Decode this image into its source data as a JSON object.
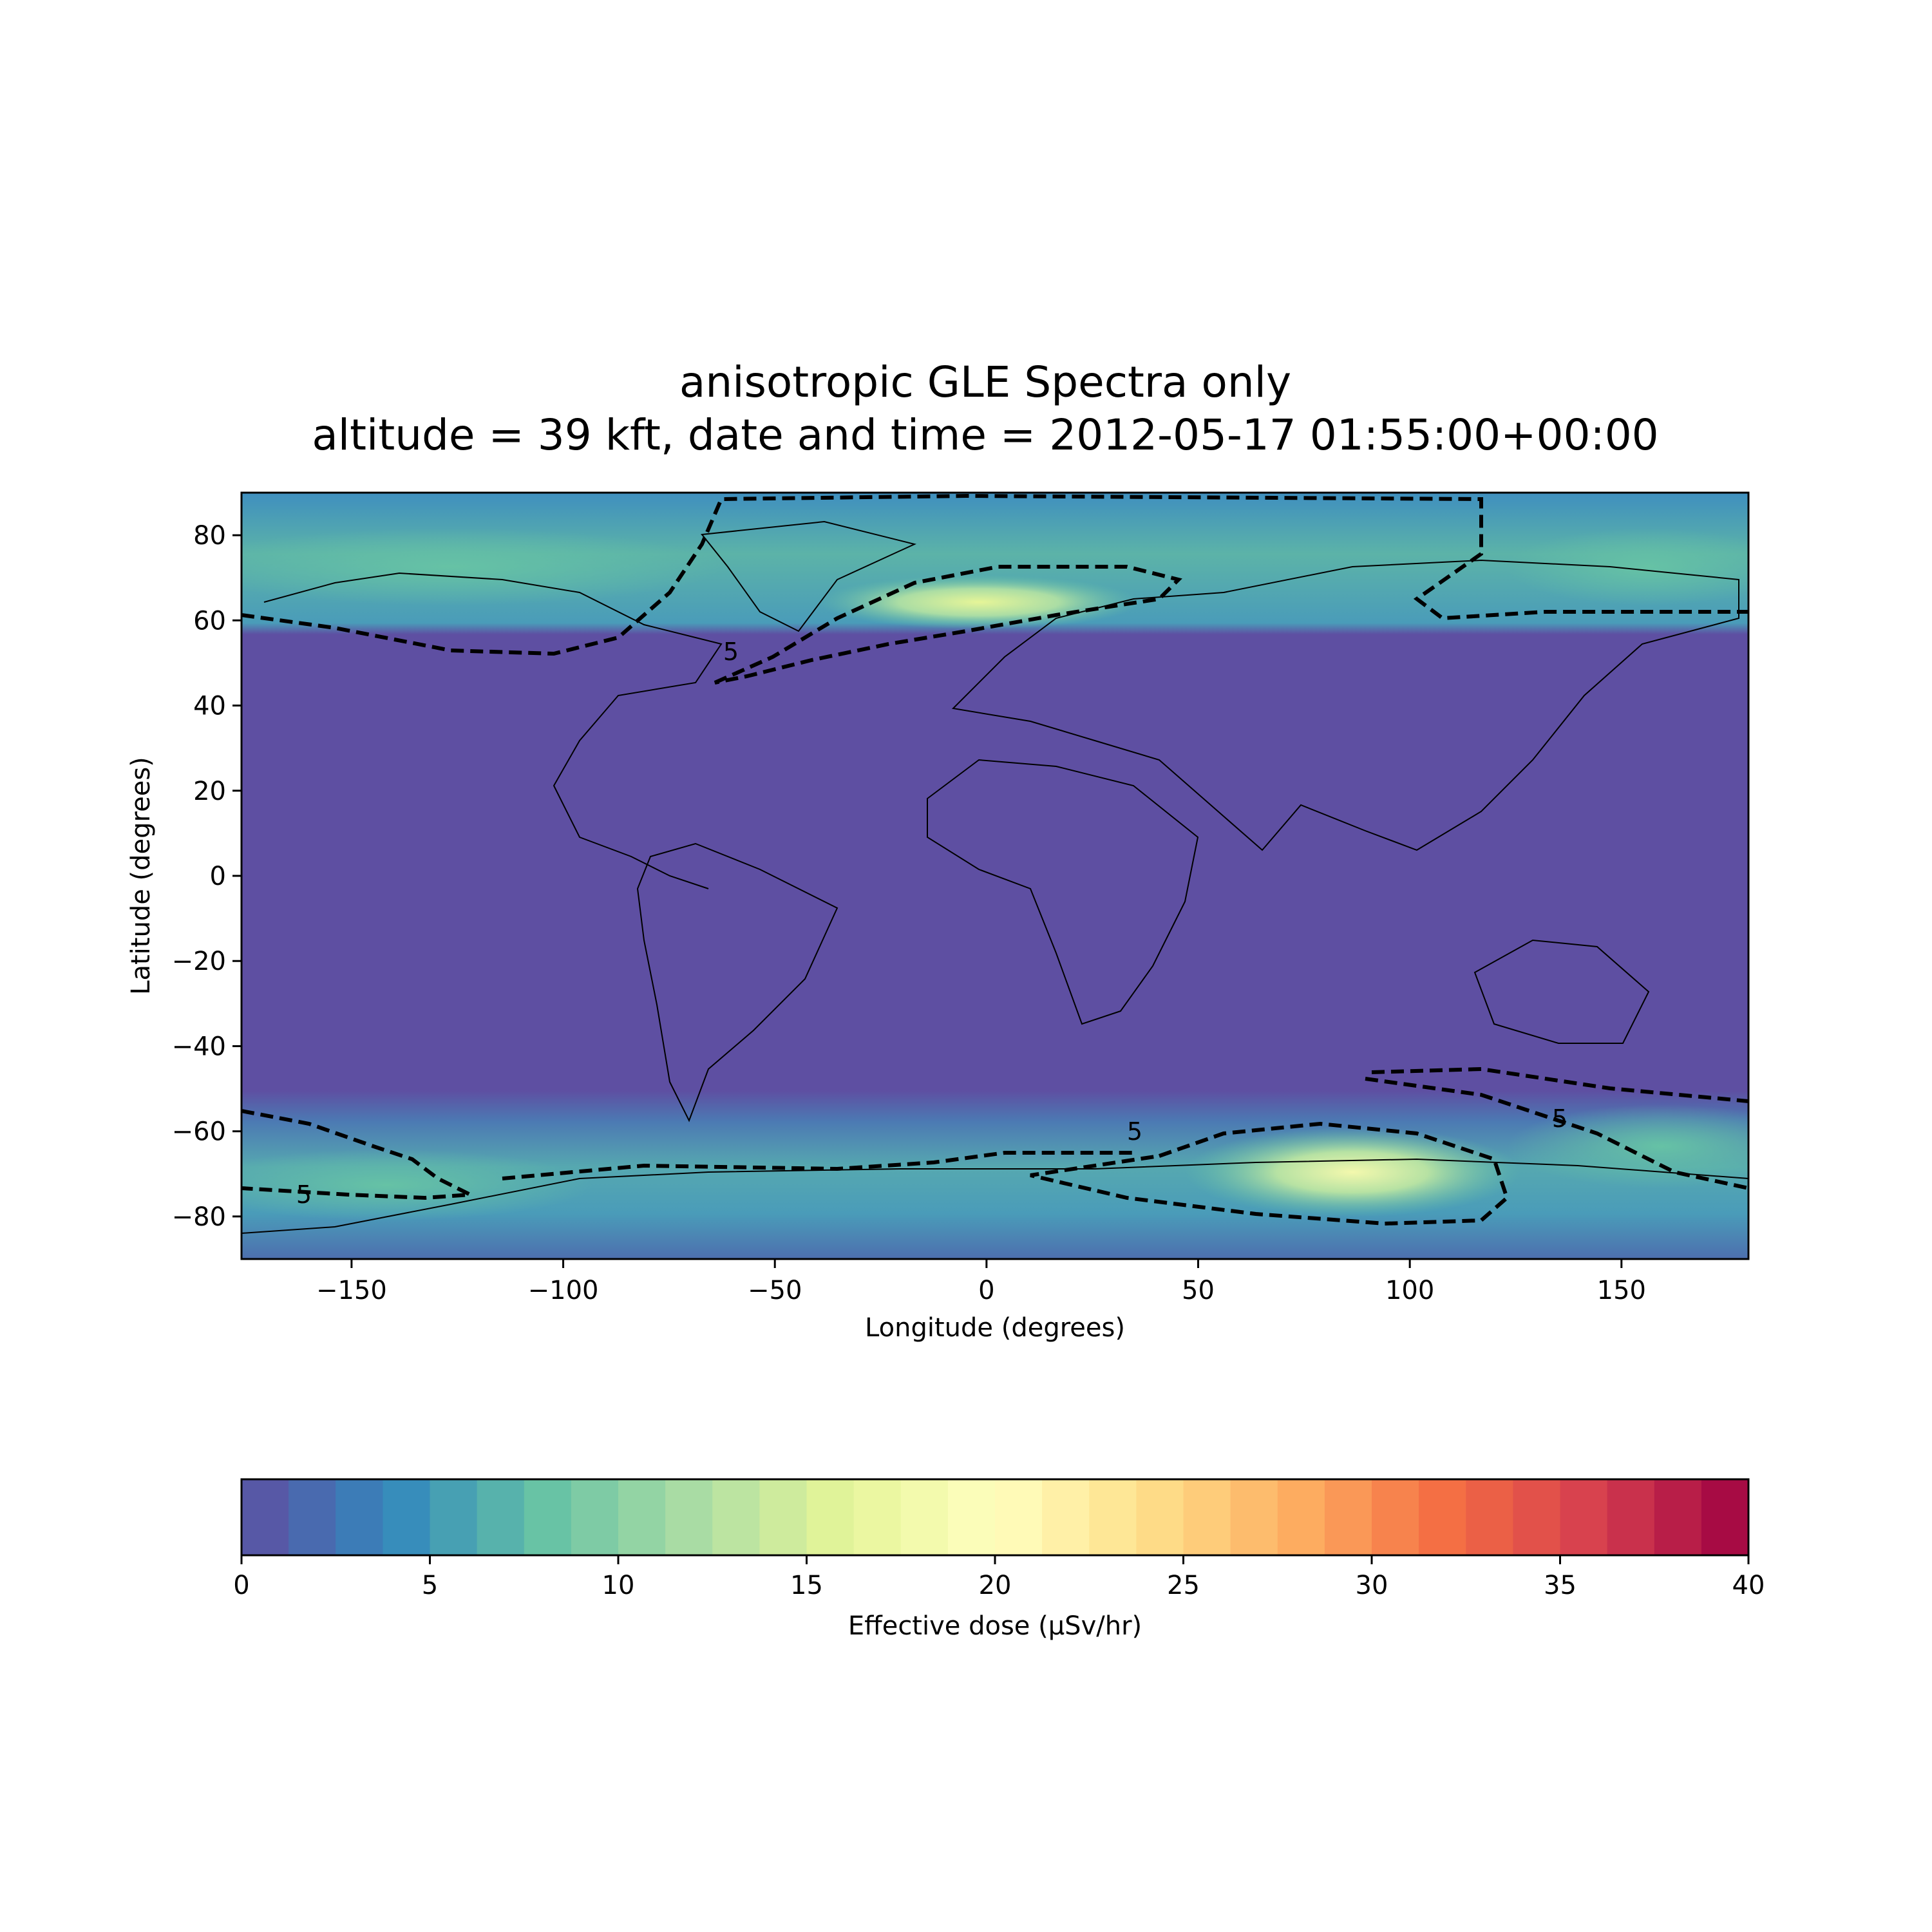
{
  "chart_data": {
    "type": "heatmap",
    "title": [
      "anisotropic GLE Spectra only",
      "altitude = 39 kft, date and time = 2012-05-17 01:55:00+00:00"
    ],
    "xlabel": "Longitude (degrees)",
    "ylabel": "Latitude (degrees)",
    "xlim": [
      -176,
      180
    ],
    "ylim": [
      -90,
      90
    ],
    "x_ticks": [
      -150,
      -100,
      -50,
      0,
      50,
      100,
      150
    ],
    "x_tick_labels": [
      "−150",
      "−100",
      "−50",
      "0",
      "50",
      "100",
      "150"
    ],
    "y_ticks": [
      80,
      60,
      40,
      20,
      0,
      -20,
      -40,
      -60,
      -80
    ],
    "y_tick_labels": [
      "80",
      "60",
      "40",
      "20",
      "0",
      "−20",
      "−40",
      "−60",
      "−80"
    ],
    "grid": false,
    "colorbar": {
      "label": "Effective dose (μSv/hr)",
      "range": [
        0,
        40
      ],
      "ticks": [
        0,
        5,
        10,
        15,
        20,
        25,
        30,
        35,
        40
      ],
      "tick_labels": [
        "0",
        "5",
        "10",
        "15",
        "20",
        "25",
        "30",
        "35",
        "40"
      ],
      "colormap": "Spectral_r",
      "colors": [
        "#5e4fa2",
        "#3288bd",
        "#66c2a5",
        "#abdda4",
        "#e6f598",
        "#ffffbf",
        "#fee08b",
        "#fdae61",
        "#f46d43",
        "#d53e4f",
        "#9e0142"
      ]
    },
    "dose_regions": [
      {
        "lat_range": [
          57,
          90
        ],
        "lon_range": [
          -176,
          180
        ],
        "dose_approx": 5
      },
      {
        "lat_range": [
          58,
          70
        ],
        "lon_range": [
          -35,
          30
        ],
        "dose_approx": 14
      },
      {
        "lat_range": [
          -90,
          -55
        ],
        "lon_range": [
          -176,
          180
        ],
        "dose_approx": 6
      },
      {
        "lat_range": [
          -78,
          -62
        ],
        "lon_range": [
          45,
          110
        ],
        "dose_approx": 15
      },
      {
        "lat_range": [
          -55,
          55
        ],
        "lon_range": [
          -176,
          180
        ],
        "dose_approx": 0.5
      }
    ],
    "contours": [
      {
        "level": 5,
        "style": "dashed",
        "label": "5"
      }
    ]
  }
}
